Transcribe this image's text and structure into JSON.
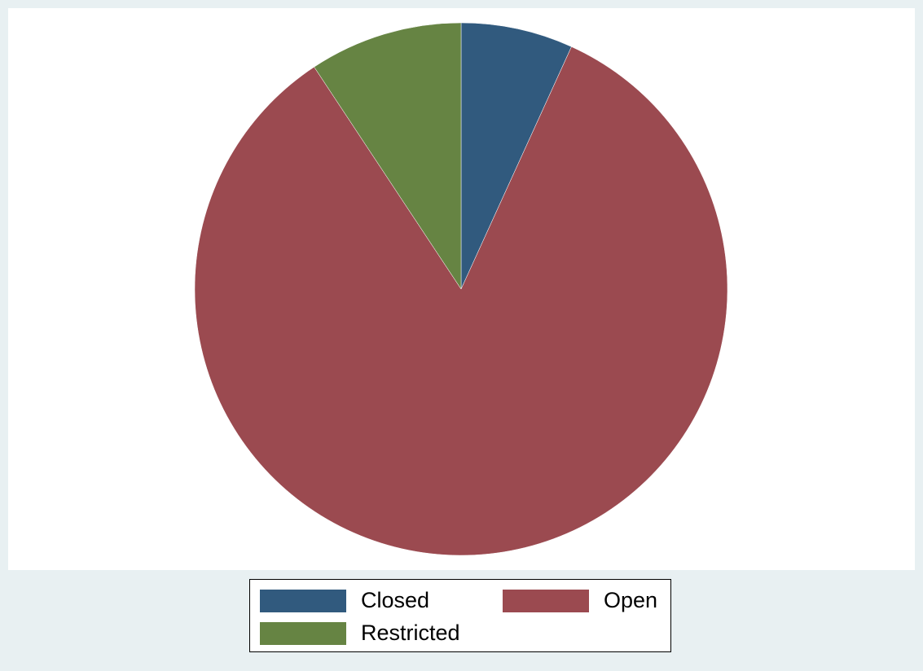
{
  "chart_data": {
    "type": "pie",
    "slices": [
      {
        "label": "Closed",
        "value": 6.8,
        "color": "#315a7e"
      },
      {
        "label": "Open",
        "value": 83.9,
        "color": "#9b4a50"
      },
      {
        "label": "Restricted",
        "value": 9.3,
        "color": "#668443"
      }
    ],
    "start_angle": "12 o'clock",
    "direction": "clockwise",
    "legend": {
      "position": "bottom",
      "columns": 2,
      "items": [
        "Closed",
        "Open",
        "Restricted"
      ]
    }
  },
  "colors": {
    "page_background": "#e8f0f2",
    "plot_background": "#ffffff"
  }
}
